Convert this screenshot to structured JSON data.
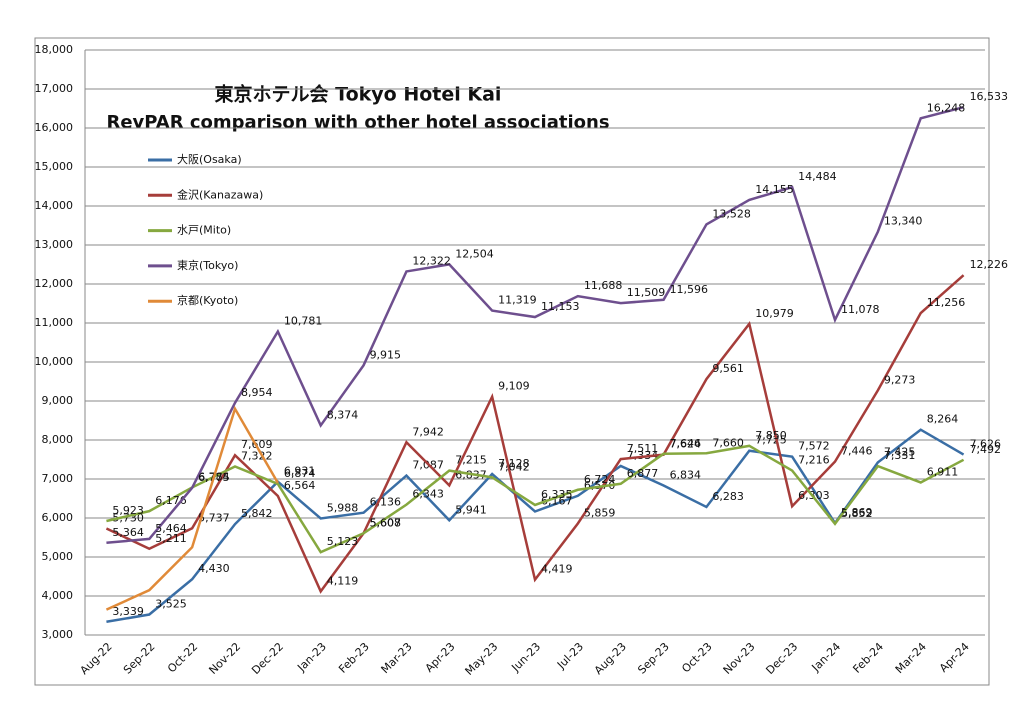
{
  "chart_data": {
    "type": "line",
    "title": "東京ホテル会  Tokyo Hotel Kai",
    "subtitle": "RevPAR comparison with other hotel associations",
    "categories": [
      "Aug-22",
      "Sep-22",
      "Oct-22",
      "Nov-22",
      "Dec-22",
      "Jan-23",
      "Feb-23",
      "Mar-23",
      "Apr-23",
      "May-23",
      "Jun-23",
      "Jul-23",
      "Aug-23",
      "Sep-23",
      "Oct-23",
      "Nov-23",
      "Dec-23",
      "Jan-24",
      "Feb-24",
      "Mar-24",
      "Apr-24"
    ],
    "series": [
      {
        "name": "大阪(Osaka)",
        "color": "#3a6ea5",
        "values": [
          3339,
          3525,
          4430,
          5842,
          6931,
          5988,
          6136,
          7087,
          5941,
          7128,
          6167,
          6570,
          7334,
          6834,
          6283,
          7725,
          7572,
          5869,
          7425,
          8264,
          7626
        ],
        "value_labels": [
          "3,339",
          "3,525",
          "4,430",
          "5,842",
          "6,931",
          "5,988",
          "6,136",
          "7,087",
          "5,941",
          "7,128",
          "6,167",
          "6,570",
          "7,334",
          "6,834",
          "6,283",
          "7,725",
          "7,572",
          "5,869",
          "7,425",
          "8,264",
          "7,626"
        ]
      },
      {
        "name": "金沢(Kanazawa)",
        "color": "#a63d3a",
        "values": [
          5730,
          5211,
          5737,
          7609,
          6564,
          4119,
          5608,
          7942,
          6837,
          9109,
          4419,
          5859,
          7511,
          7624,
          9561,
          10979,
          6303,
          7446,
          9273,
          11256,
          12226
        ],
        "value_labels": [
          "5,730",
          "5,211",
          "5,737",
          "7,609",
          "6,564",
          "4,119",
          "5,608",
          "7,942",
          "6,837",
          "9,109",
          "4,419",
          "5,859",
          "7,511",
          "7,624",
          "9,561",
          "10,979",
          "6,303",
          "7,446",
          "9,273",
          "11,256",
          "12,226"
        ]
      },
      {
        "name": "水戸(Mito)",
        "color": "#86a83f",
        "values": [
          5923,
          6176,
          6784,
          7322,
          6874,
          5123,
          5607,
          6343,
          7215,
          7042,
          6335,
          6724,
          6877,
          7646,
          7660,
          7850,
          7216,
          5852,
          7331,
          6911,
          7492
        ],
        "value_labels": [
          "5,923",
          "6,176",
          "6,784",
          "7,322",
          "6,874",
          "5,123",
          "5,607",
          "6,343",
          "7,215",
          "7,042",
          "6,335",
          "6,724",
          "6,877",
          "7,646",
          "7,660",
          "7,850",
          "7,216",
          "5,852",
          "7,331",
          "6,911",
          "7,492"
        ]
      },
      {
        "name": "東京(Tokyo)",
        "color": "#6e4f8e",
        "values": [
          5364,
          5464,
          6775,
          8954,
          10781,
          8374,
          9915,
          12322,
          12504,
          11319,
          11153,
          11688,
          11509,
          11596,
          13528,
          14155,
          14484,
          11078,
          13340,
          16248,
          16533
        ],
        "value_labels": [
          "5,364",
          "5,464",
          "6,775",
          "8,954",
          "10,781",
          "8,374",
          "9,915",
          "12,322",
          "12,504",
          "11,319",
          "11,153",
          "11,688",
          "11,509",
          "11,596",
          "13,528",
          "14,155",
          "14,484",
          "11,078",
          "13,340",
          "16,248",
          "16,533"
        ]
      },
      {
        "name": "京都(Kyoto)",
        "color": "#e08a38",
        "values": [
          3650,
          4150,
          5250,
          8800,
          6900,
          null,
          null,
          null,
          null,
          null,
          null,
          null,
          null,
          null,
          null,
          null,
          null,
          null,
          null,
          null,
          null
        ]
      }
    ],
    "ylim": [
      3000,
      18000
    ],
    "yticks": [
      {
        "value": 3000,
        "label": "3,000"
      },
      {
        "value": 4000,
        "label": "4,000"
      },
      {
        "value": 5000,
        "label": "5,000"
      },
      {
        "value": 6000,
        "label": "6,000"
      },
      {
        "value": 7000,
        "label": "7,000"
      },
      {
        "value": 8000,
        "label": "8,000"
      },
      {
        "value": 9000,
        "label": "9,000"
      },
      {
        "value": 10000,
        "label": "10,000"
      },
      {
        "value": 11000,
        "label": "11,000"
      },
      {
        "value": 12000,
        "label": "12,000"
      },
      {
        "value": 13000,
        "label": "13,000"
      },
      {
        "value": 14000,
        "label": "14,000"
      },
      {
        "value": 15000,
        "label": "15,000"
      },
      {
        "value": 16000,
        "label": "16,000"
      },
      {
        "value": 17000,
        "label": "17,000"
      },
      {
        "value": 18000,
        "label": "18,000"
      }
    ],
    "grid": true
  }
}
